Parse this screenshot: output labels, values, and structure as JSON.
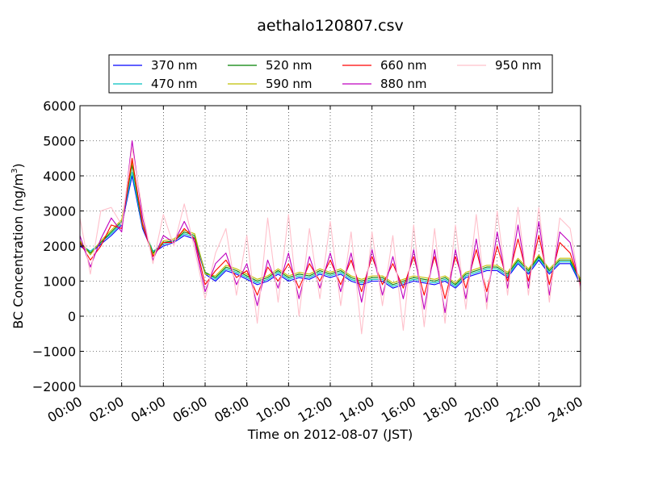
{
  "chart_data": {
    "type": "line",
    "title": "aethalo120807.csv",
    "xlabel": "Time on 2012-08-07 (JST)",
    "ylabel": "BC Concentration (ng/m³)",
    "ylabel_parts": {
      "main": "BC Concentration (ng/m",
      "sup": "3",
      "end": ")"
    },
    "xlim": [
      "00:00",
      "24:00"
    ],
    "ylim": [
      -2000,
      6000
    ],
    "grid": true,
    "legend_placement": "top-center (above plot, 4 columns)",
    "x_ticks": [
      "00:00",
      "02:00",
      "04:00",
      "06:00",
      "08:00",
      "10:00",
      "12:00",
      "14:00",
      "16:00",
      "18:00",
      "20:00",
      "22:00",
      "24:00"
    ],
    "y_ticks": [
      -2000,
      -1000,
      0,
      1000,
      2000,
      3000,
      4000,
      5000,
      6000
    ],
    "y_tick_labels": [
      "−2000",
      "−1000",
      "0",
      "1000",
      "2000",
      "3000",
      "4000",
      "5000",
      "6000"
    ],
    "x_hours": [
      0,
      0.5,
      1,
      1.5,
      2,
      2.5,
      3,
      3.5,
      4,
      4.5,
      5,
      5.5,
      6,
      6.5,
      7,
      7.5,
      8,
      8.5,
      9,
      9.5,
      10,
      10.5,
      11,
      11.5,
      12,
      12.5,
      13,
      13.5,
      14,
      14.5,
      15,
      15.5,
      16,
      16.5,
      17,
      17.5,
      18,
      18.5,
      19,
      19.5,
      20,
      20.5,
      21,
      21.5,
      22,
      22.5,
      23,
      23.5,
      24
    ],
    "series": [
      {
        "name": "370 nm",
        "color": "#0000ff",
        "values": [
          2000,
          1800,
          2050,
          2300,
          2600,
          4000,
          2500,
          1800,
          2000,
          2100,
          2300,
          2200,
          1200,
          1000,
          1300,
          1200,
          1050,
          900,
          1000,
          1200,
          1000,
          1100,
          1050,
          1200,
          1100,
          1200,
          1000,
          900,
          1000,
          1000,
          800,
          900,
          1000,
          950,
          900,
          1000,
          800,
          1100,
          1200,
          1300,
          1300,
          1100,
          1500,
          1200,
          1600,
          1200,
          1500,
          1500,
          900
        ]
      },
      {
        "name": "470 nm",
        "color": "#00bfbf",
        "values": [
          2050,
          1850,
          2100,
          2350,
          2650,
          4100,
          2550,
          1850,
          2050,
          2150,
          2350,
          2250,
          1250,
          1050,
          1350,
          1250,
          1100,
          950,
          1050,
          1250,
          1050,
          1150,
          1100,
          1250,
          1150,
          1250,
          1050,
          950,
          1050,
          1050,
          850,
          950,
          1050,
          1000,
          950,
          1050,
          850,
          1150,
          1250,
          1350,
          1350,
          1150,
          1550,
          1250,
          1650,
          1250,
          1550,
          1550,
          950
        ]
      },
      {
        "name": "520 nm",
        "color": "#008000",
        "values": [
          2100,
          1800,
          2100,
          2400,
          2700,
          4300,
          2600,
          1800,
          2100,
          2150,
          2400,
          2300,
          1250,
          1100,
          1400,
          1300,
          1150,
          1000,
          1100,
          1300,
          1100,
          1200,
          1150,
          1300,
          1200,
          1300,
          1100,
          1000,
          1100,
          1100,
          900,
          1000,
          1100,
          1050,
          1000,
          1100,
          900,
          1200,
          1300,
          1400,
          1400,
          1200,
          1600,
          1300,
          1700,
          1300,
          1600,
          1600,
          1000
        ]
      },
      {
        "name": "590 nm",
        "color": "#bfbf00",
        "values": [
          2150,
          1750,
          2150,
          2450,
          2750,
          4400,
          2650,
          1750,
          2150,
          2200,
          2450,
          2350,
          1200,
          1150,
          1450,
          1350,
          1200,
          1050,
          1150,
          1350,
          1150,
          1250,
          1200,
          1350,
          1250,
          1350,
          1150,
          1050,
          1150,
          1150,
          950,
          1050,
          1150,
          1100,
          1050,
          1150,
          950,
          1250,
          1350,
          1450,
          1450,
          1250,
          1650,
          1350,
          1750,
          1350,
          1650,
          1650,
          1050
        ]
      },
      {
        "name": "660 nm",
        "color": "#ff0000",
        "values": [
          2100,
          1600,
          2000,
          2600,
          2500,
          4500,
          2600,
          1700,
          2100,
          2100,
          2500,
          2200,
          900,
          1300,
          1600,
          1100,
          1300,
          600,
          1400,
          1000,
          1500,
          800,
          1500,
          1000,
          1600,
          900,
          1600,
          700,
          1700,
          900,
          1500,
          800,
          1700,
          600,
          1700,
          500,
          1700,
          800,
          1900,
          700,
          2000,
          1000,
          2200,
          1000,
          2300,
          900,
          2100,
          1800,
          900
        ]
      },
      {
        "name": "880 nm",
        "color": "#bf00bf",
        "values": [
          2300,
          1400,
          2200,
          2800,
          2400,
          5000,
          2800,
          1600,
          2300,
          2100,
          2700,
          2100,
          700,
          1500,
          1800,
          900,
          1500,
          300,
          1600,
          800,
          1800,
          500,
          1700,
          800,
          1800,
          700,
          1800,
          400,
          1900,
          600,
          1700,
          500,
          1900,
          200,
          1900,
          100,
          1900,
          500,
          2200,
          400,
          2400,
          800,
          2600,
          800,
          2700,
          600,
          2400,
          2100,
          800
        ]
      },
      {
        "name": "950 nm",
        "color": "#ffc0cb",
        "values": [
          2800,
          1200,
          3000,
          3100,
          2600,
          4800,
          3000,
          1500,
          2900,
          2000,
          3200,
          1900,
          500,
          1800,
          2500,
          600,
          2300,
          -200,
          2800,
          400,
          2900,
          0,
          2500,
          500,
          2700,
          300,
          2400,
          -500,
          2400,
          300,
          2300,
          -400,
          2600,
          -300,
          2500,
          -200,
          2600,
          200,
          2900,
          200,
          3000,
          600,
          3100,
          600,
          3100,
          400,
          2800,
          2500,
          700
        ]
      }
    ]
  }
}
